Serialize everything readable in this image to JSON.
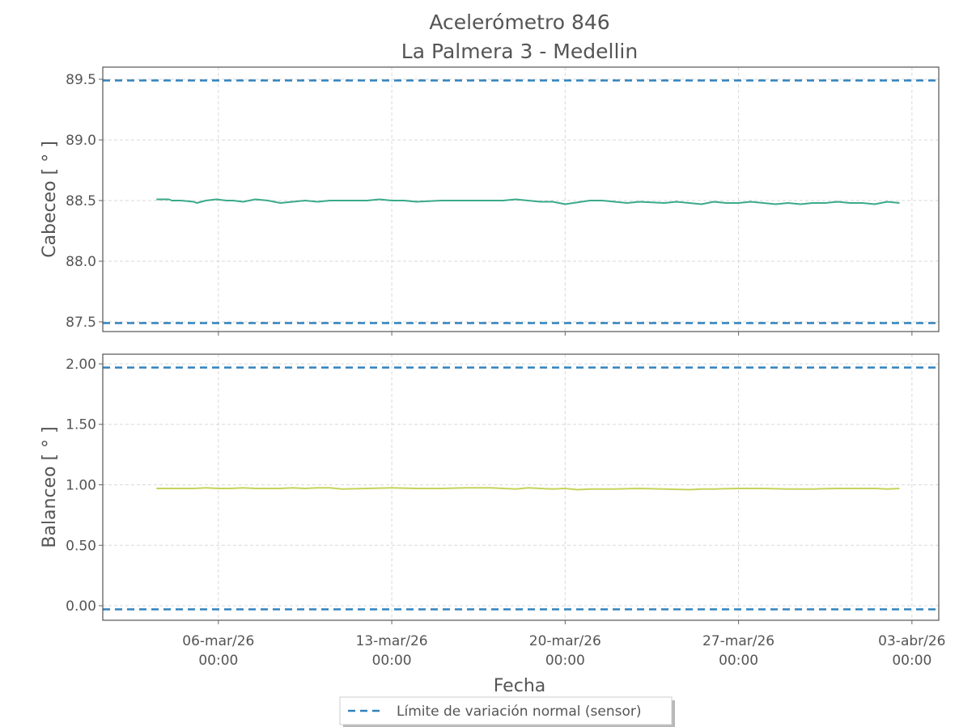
{
  "title_line1": "Acelerómetro 846",
  "title_line2": "La Palmera 3 - Medellin",
  "xlabel": "Fecha",
  "legend": {
    "label": "Límite de variación normal (sensor)",
    "color": "#3182bd"
  },
  "chart_data": [
    {
      "type": "line",
      "ylabel": "Cabeceo [ ° ]",
      "ylim": [
        87.42,
        89.6
      ],
      "yticks": [
        87.5,
        88.0,
        88.5,
        89.0,
        89.5
      ],
      "ytick_labels": [
        "87.5",
        "88.0",
        "88.5",
        "89.0",
        "89.5"
      ],
      "grid": true,
      "limit_lines": [
        87.49,
        89.49
      ],
      "series": [
        {
          "color": "#3aaa8a",
          "x": [
            "2026-03-03T12:00",
            "2026-03-04T00:00",
            "2026-03-04T03:00",
            "2026-03-04T06:00",
            "2026-03-04T12:00",
            "2026-03-05T00:00",
            "2026-03-05T03:00",
            "2026-03-05T12:00",
            "2026-03-05T22:00",
            "2026-03-06T08:00",
            "2026-03-06T14:00",
            "2026-03-07T00:00",
            "2026-03-07T12:00",
            "2026-03-08T00:00",
            "2026-03-08T12:00",
            "2026-03-09T00:00",
            "2026-03-09T12:00",
            "2026-03-10T00:00",
            "2026-03-10T12:00",
            "2026-03-11T00:00",
            "2026-03-12T00:00",
            "2026-03-12T12:00",
            "2026-03-13T00:00",
            "2026-03-13T12:00",
            "2026-03-14T00:00",
            "2026-03-15T00:00",
            "2026-03-16T00:00",
            "2026-03-17T00:00",
            "2026-03-17T12:00",
            "2026-03-18T00:00",
            "2026-03-18T12:00",
            "2026-03-19T00:00",
            "2026-03-19T12:00",
            "2026-03-19T18:00",
            "2026-03-20T00:00",
            "2026-03-21T00:00",
            "2026-03-21T12:00",
            "2026-03-22T00:00",
            "2026-03-22T12:00",
            "2026-03-23T00:00",
            "2026-03-24T00:00",
            "2026-03-24T12:00",
            "2026-03-25T00:00",
            "2026-03-25T12:00",
            "2026-03-26T00:00",
            "2026-03-26T12:00",
            "2026-03-27T00:00",
            "2026-03-27T12:00",
            "2026-03-28T00:00",
            "2026-03-28T12:00",
            "2026-03-29T00:00",
            "2026-03-29T12:00",
            "2026-03-30T00:00",
            "2026-03-30T12:00",
            "2026-03-31T00:00",
            "2026-03-31T12:00",
            "2026-04-01T00:00",
            "2026-04-01T12:00",
            "2026-04-02T00:00",
            "2026-04-02T12:00"
          ],
          "y": [
            88.51,
            88.51,
            88.5,
            88.5,
            88.5,
            88.49,
            88.48,
            88.5,
            88.51,
            88.5,
            88.5,
            88.49,
            88.51,
            88.5,
            88.48,
            88.49,
            88.5,
            88.49,
            88.5,
            88.5,
            88.5,
            88.51,
            88.5,
            88.5,
            88.49,
            88.5,
            88.5,
            88.5,
            88.5,
            88.51,
            88.5,
            88.49,
            88.49,
            88.48,
            88.47,
            88.5,
            88.5,
            88.49,
            88.48,
            88.49,
            88.48,
            88.49,
            88.48,
            88.47,
            88.49,
            88.48,
            88.48,
            88.49,
            88.48,
            88.47,
            88.48,
            88.47,
            88.48,
            88.48,
            88.49,
            88.48,
            88.48,
            88.47,
            88.49,
            88.48
          ]
        }
      ]
    },
    {
      "type": "line",
      "ylabel": "Balanceo [ ° ]",
      "ylim": [
        -0.12,
        2.08
      ],
      "yticks": [
        0.0,
        0.5,
        1.0,
        1.5,
        2.0
      ],
      "ytick_labels": [
        "0.00",
        "0.50",
        "1.00",
        "1.50",
        "2.00"
      ],
      "xtick_labels": [
        [
          "06-mar/26",
          "00:00"
        ],
        [
          "13-mar/26",
          "00:00"
        ],
        [
          "20-mar/26",
          "00:00"
        ],
        [
          "27-mar/26",
          "00:00"
        ],
        [
          "03-abr/26",
          "00:00"
        ]
      ],
      "grid": true,
      "limit_lines": [
        -0.03,
        1.97
      ],
      "series": [
        {
          "color": "#c5d35a",
          "x": [
            "2026-03-03T12:00",
            "2026-03-04T00:00",
            "2026-03-04T12:00",
            "2026-03-05T00:00",
            "2026-03-05T12:00",
            "2026-03-06T00:00",
            "2026-03-06T12:00",
            "2026-03-07T00:00",
            "2026-03-07T12:00",
            "2026-03-08T00:00",
            "2026-03-08T12:00",
            "2026-03-09T00:00",
            "2026-03-09T12:00",
            "2026-03-10T00:00",
            "2026-03-10T12:00",
            "2026-03-11T00:00",
            "2026-03-12T00:00",
            "2026-03-13T00:00",
            "2026-03-14T00:00",
            "2026-03-15T00:00",
            "2026-03-16T00:00",
            "2026-03-17T00:00",
            "2026-03-17T12:00",
            "2026-03-18T00:00",
            "2026-03-18T12:00",
            "2026-03-19T00:00",
            "2026-03-19T12:00",
            "2026-03-20T00:00",
            "2026-03-20T12:00",
            "2026-03-21T00:00",
            "2026-03-22T00:00",
            "2026-03-23T00:00",
            "2026-03-24T00:00",
            "2026-03-25T00:00",
            "2026-03-25T12:00",
            "2026-03-26T00:00",
            "2026-03-27T00:00",
            "2026-03-28T00:00",
            "2026-03-29T00:00",
            "2026-03-30T00:00",
            "2026-03-31T00:00",
            "2026-04-01T00:00",
            "2026-04-01T12:00",
            "2026-04-02T00:00",
            "2026-04-02T12:00"
          ],
          "y": [
            0.97,
            0.97,
            0.97,
            0.97,
            0.975,
            0.97,
            0.97,
            0.975,
            0.97,
            0.97,
            0.97,
            0.975,
            0.97,
            0.975,
            0.975,
            0.965,
            0.97,
            0.975,
            0.97,
            0.97,
            0.975,
            0.975,
            0.97,
            0.965,
            0.975,
            0.97,
            0.965,
            0.97,
            0.96,
            0.965,
            0.965,
            0.97,
            0.965,
            0.96,
            0.965,
            0.965,
            0.97,
            0.97,
            0.965,
            0.965,
            0.97,
            0.97,
            0.97,
            0.965,
            0.97
          ]
        }
      ]
    }
  ]
}
